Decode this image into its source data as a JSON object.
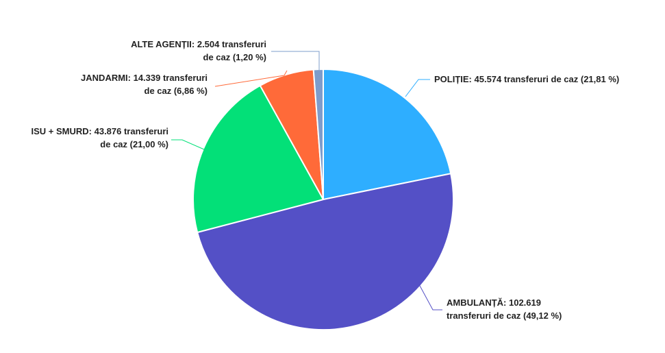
{
  "chart_data": {
    "type": "pie",
    "title": "",
    "slices": [
      {
        "name": "POLIȚIE",
        "value": 45574,
        "percent": 21.81,
        "color": "#2EAEFF",
        "label_lines": [
          "POLIȚIE: 45.574 transferuri de caz (21,81 %)"
        ]
      },
      {
        "name": "AMBULANȚĂ",
        "value": 102619,
        "percent": 49.12,
        "color": "#5450C6",
        "label_lines": [
          "AMBULANȚĂ: 102.619",
          "transferuri de caz (49,12 %)"
        ]
      },
      {
        "name": "ISU + SMURD",
        "value": 43876,
        "percent": 21.0,
        "color": "#03E078",
        "label_lines": [
          "ISU + SMURD: 43.876 transferuri",
          "de caz (21,00 %)"
        ]
      },
      {
        "name": "JANDARMI",
        "value": 14339,
        "percent": 6.86,
        "color": "#FF6A39",
        "label_lines": [
          "JANDARMI: 14.339 transferuri",
          "de caz (6,86 %)"
        ]
      },
      {
        "name": "ALTE AGENȚII",
        "value": 2504,
        "percent": 1.2,
        "color": "#7E9CCB",
        "label_lines": [
          "ALTE AGENȚII: 2.504 transferuri",
          "de caz (1,20 %)"
        ]
      }
    ]
  }
}
